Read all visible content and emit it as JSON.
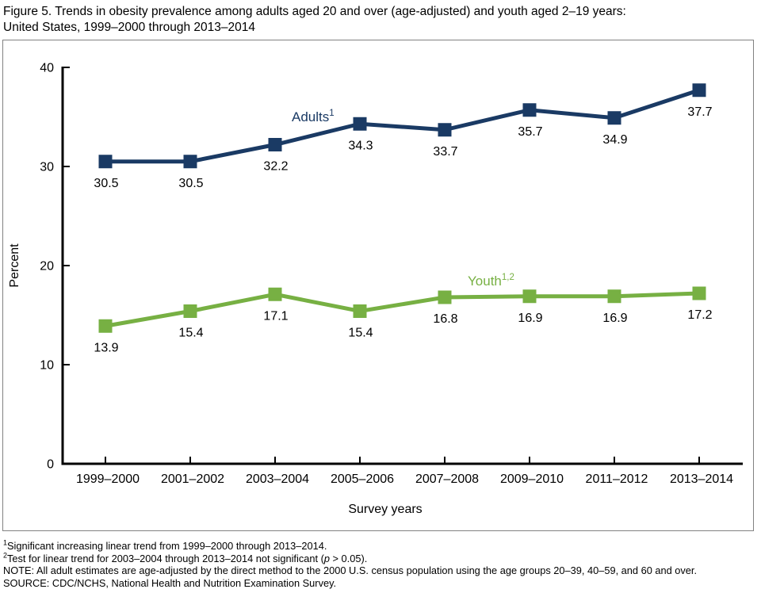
{
  "title": {
    "line1": "Figure 5. Trends in obesity prevalence among adults aged 20 and over (age-adjusted) and youth aged 2–19 years:",
    "line2": "United States, 1999–2000 through 2013–2014"
  },
  "chart_data": {
    "type": "line",
    "title": "Trends in obesity prevalence among adults aged 20 and over (age-adjusted) and youth aged 2–19 years: United States, 1999–2000 through 2013–2014",
    "categories": [
      "1999–2000",
      "2001–2002",
      "2003–2004",
      "2005–2006",
      "2007–2008",
      "2009–2010",
      "2011–2012",
      "2013–2014"
    ],
    "series": [
      {
        "name": "Adults",
        "sup": "1",
        "color": "#1a3a64",
        "values": [
          30.5,
          30.5,
          32.2,
          34.3,
          33.7,
          35.7,
          34.9,
          37.7
        ]
      },
      {
        "name": "Youth",
        "sup": "1,2",
        "color": "#77b043",
        "values": [
          13.9,
          15.4,
          17.1,
          15.4,
          16.8,
          16.9,
          16.9,
          17.2
        ]
      }
    ],
    "xlabel": "Survey years",
    "ylabel": "Percent",
    "ylim": [
      0,
      40
    ],
    "yticks": [
      0,
      10,
      20,
      30,
      40
    ],
    "grid": false,
    "legend_position": "inline-labels",
    "data_labels": true,
    "axis_color": "#000000",
    "label_color": "#000000"
  },
  "footnotes": {
    "f1": {
      "sup": "1",
      "text": "Significant increasing linear trend from 1999–2000 through 2013–2014."
    },
    "f2": {
      "sup": "2",
      "pre": "Test for linear trend for 2003–2004 through 2013–2014 not significant (",
      "italic": "p",
      "post": " > 0.05)."
    },
    "note": "NOTE: All adult estimates are age-adjusted by the direct method to the 2000 U.S. census population using the age groups 20–39, 40–59, and 60 and over.",
    "source": "SOURCE: CDC/NCHS, National Health and Nutrition Examination Survey."
  }
}
